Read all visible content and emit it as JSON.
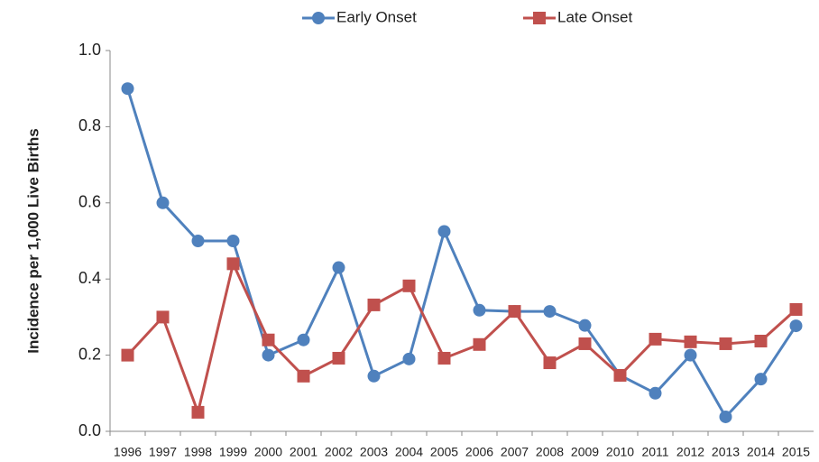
{
  "chart_data": {
    "type": "line",
    "y_label": "Incidence per 1,000 Live Births",
    "categories": [
      "1996",
      "1997",
      "1998",
      "1999",
      "2000",
      "2001",
      "2002",
      "2003",
      "2004",
      "2005",
      "2006",
      "2007",
      "2008",
      "2009",
      "2010",
      "2011",
      "2012",
      "2013",
      "2014",
      "2015"
    ],
    "series": [
      {
        "name": "Early Onset",
        "color": "#4f81bd",
        "marker": "circle",
        "values": [
          0.9,
          0.6,
          0.5,
          0.5,
          0.2,
          0.24,
          0.43,
          0.145,
          0.19,
          0.525,
          0.318,
          0.315,
          0.315,
          0.278,
          0.147,
          0.1,
          0.2,
          0.038,
          0.137,
          0.277
        ]
      },
      {
        "name": "Late Onset",
        "color": "#c0504d",
        "marker": "square",
        "values": [
          0.2,
          0.3,
          0.05,
          0.44,
          0.24,
          0.145,
          0.192,
          0.332,
          0.382,
          0.192,
          0.228,
          0.315,
          0.18,
          0.23,
          0.147,
          0.242,
          0.235,
          0.23,
          0.237,
          0.32
        ]
      }
    ],
    "ylim": [
      0,
      1
    ],
    "yticks": [
      {
        "value": 0,
        "label": "0.0"
      },
      0.2,
      0.4,
      0.6,
      0.8,
      {
        "value": 1,
        "label": "1.0"
      }
    ]
  }
}
